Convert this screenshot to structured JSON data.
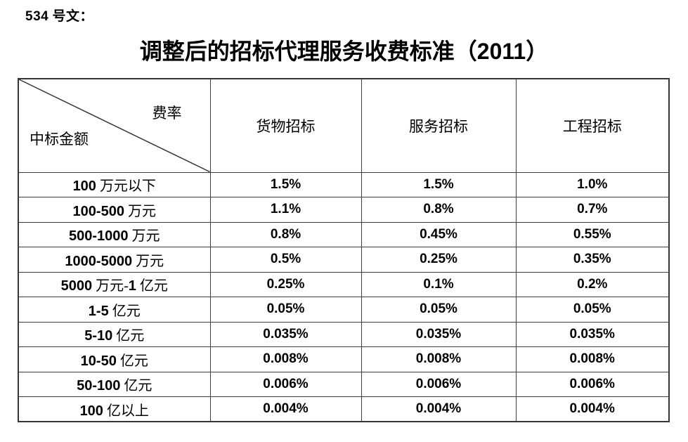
{
  "page": {
    "doc_ref": "534 号文：",
    "title": "调整后的招标代理服务收费标准（2011）"
  },
  "table": {
    "corner": {
      "top_right_label": "费率",
      "bottom_left_label": "中标金额"
    },
    "columns": [
      "货物招标",
      "服务招标",
      "工程招标"
    ],
    "rows": [
      {
        "label": "100 万元以下",
        "values": [
          "1.5%",
          "1.5%",
          "1.0%"
        ]
      },
      {
        "label": "100-500 万元",
        "values": [
          "1.1%",
          "0.8%",
          "0.7%"
        ]
      },
      {
        "label": "500-1000 万元",
        "values": [
          "0.8%",
          "0.45%",
          "0.55%"
        ]
      },
      {
        "label": "1000-5000 万元",
        "values": [
          "0.5%",
          "0.25%",
          "0.35%"
        ]
      },
      {
        "label": "5000 万元-1 亿元",
        "values": [
          "0.25%",
          "0.1%",
          "0.2%"
        ]
      },
      {
        "label": "1-5 亿元",
        "values": [
          "0.05%",
          "0.05%",
          "0.05%"
        ]
      },
      {
        "label": "5-10 亿元",
        "values": [
          "0.035%",
          "0.035%",
          "0.035%"
        ]
      },
      {
        "label": "10-50 亿元",
        "values": [
          "0.008%",
          "0.008%",
          "0.008%"
        ]
      },
      {
        "label": "50-100 亿元",
        "values": [
          "0.006%",
          "0.006%",
          "0.006%"
        ]
      },
      {
        "label": "100 亿以上",
        "values": [
          "0.004%",
          "0.004%",
          "0.004%"
        ]
      }
    ]
  },
  "colors": {
    "text": "#000000",
    "border": "#3b3b3b",
    "background": "#ffffff"
  }
}
